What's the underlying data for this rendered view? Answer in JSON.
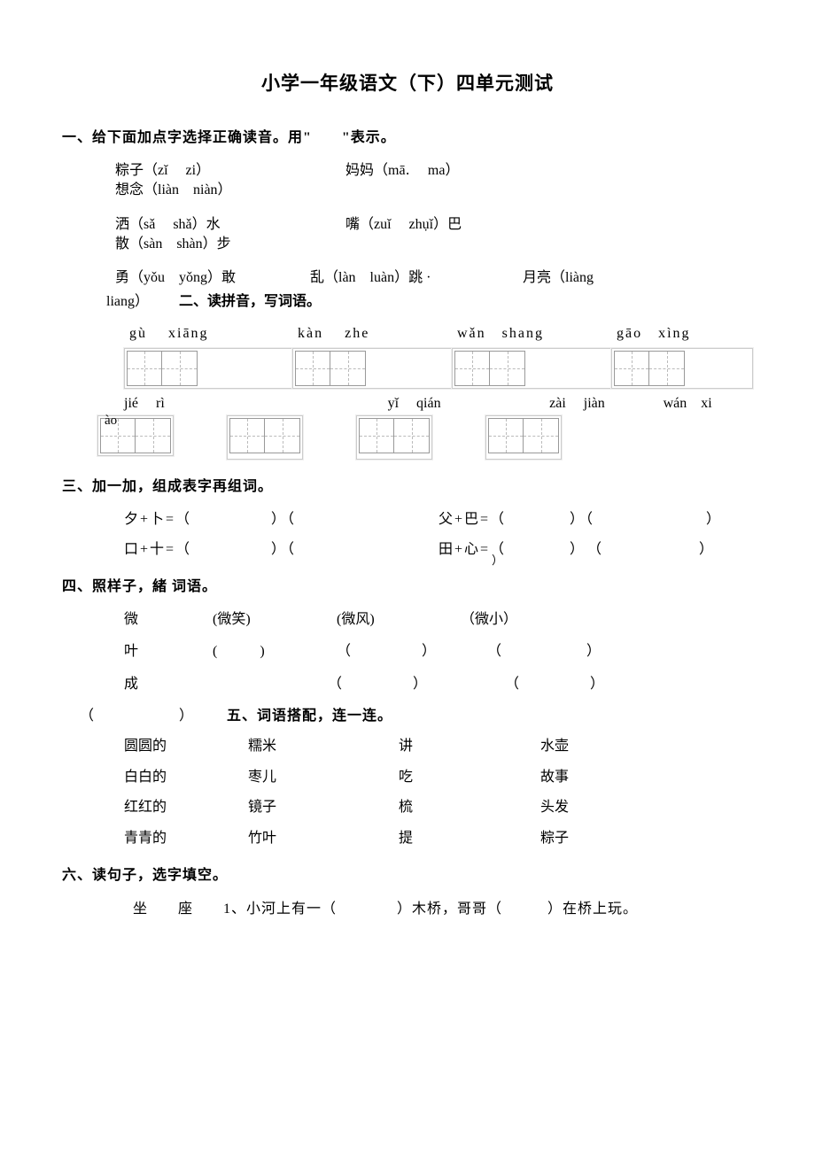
{
  "title": "小学一年级语文（下）四单元测试",
  "s1": {
    "heading": "一、给下面加点字选择正确读音。用\"　　\"表示。",
    "r1a": "粽子（zǐ  zi）",
    "r1b": "妈妈（mā․  ma）",
    "r1c": "想念（liàn niàn）",
    "r2a": "洒（sǎ  shǎ）水",
    "r2b": "嘴（zuǐ  zhụǐ）巴",
    "r2c": "散（sàn shàn）步",
    "r3a": "勇（yǒu yǒng）敢",
    "r3b": "乱（làn luàn）跳  ·",
    "r3c": "月亮（liàng",
    "liang_tail": "liang）"
  },
  "s2": {
    "heading": "二、读拼音，写词语。",
    "p1": "gù  xiāng",
    "p2": "kàn  zhe",
    "p3": "wǎn shang",
    "p4": "gāo xìng",
    "p5a": "jié  rì",
    "p5b_ao": "ào",
    "p6": "yǐ  qián",
    "p7": "zài  jiàn",
    "p8": "wán xi"
  },
  "s3": {
    "heading": "三、加一加，组成表字再组词。",
    "l1": "夕+卜=（　　　　　）（",
    "r1": "父+巴=（　　　　）（　　　　　　　）",
    "l2": "口+十=（　　　　　）（",
    "r2": "田+心=（　　　　）　（　　　　　　）",
    "r2_sub": "）"
  },
  "s4": {
    "heading": "四、照样子，緒 词语。",
    "r1_hz": "微",
    "r1_a": "(微笑)",
    "r1_b": "(微风)",
    "r1_c": "（微小）",
    "r2_hz": "叶",
    "r2_a": "(　　　)",
    "r2_b": "（　　　　　）",
    "r2_c": "（　　　　　　）",
    "r3_hz": "成",
    "r3_b": "（　　　　　）",
    "r3_c": "（　　　　　）",
    "trail": "（　　　　　　）"
  },
  "s5": {
    "heading": "五、词语搭配，连一连。",
    "rows": [
      [
        "圆圆的",
        "糯米",
        "讲",
        "水壶"
      ],
      [
        "白白的",
        "枣儿",
        "吃",
        "故事"
      ],
      [
        "红红的",
        "镜子",
        "梳",
        "头发"
      ],
      [
        "青青的",
        "竹叶",
        "提",
        "粽子"
      ]
    ]
  },
  "s6": {
    "heading": "六、读句子，选字填空。",
    "line1": "坐　　座　　1、小河上有一（　　　　）木桥，哥哥（　　　）在桥上玩。"
  }
}
